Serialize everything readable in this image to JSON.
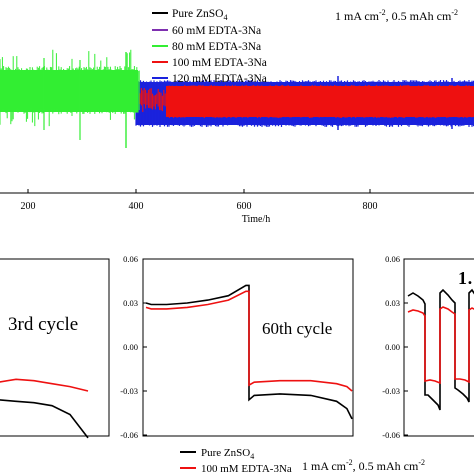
{
  "chart_data": [
    {
      "type": "line",
      "panel": "top",
      "xlabel": "Time/h",
      "ylabel": "",
      "xlim": [
        130,
        1000
      ],
      "xticks": [
        200,
        400,
        600,
        800
      ],
      "annotation": "1 mA cm⁻², 0.5 mAh cm⁻²",
      "legend": {
        "placement": "top-center",
        "entries": [
          "Pure ZnSO₄",
          "60 mM EDTA-3Na",
          "80 mM EDTA-3Na",
          "100 mM EDTA-3Na",
          "120 mM EDTA-3Na"
        ]
      },
      "series": [
        {
          "name": "Pure ZnSO₄",
          "color": "#000000",
          "x": [],
          "y": []
        },
        {
          "name": "60 mM EDTA-3Na",
          "color": "#7e2fb0",
          "x": [],
          "y": []
        },
        {
          "name": "80 mM EDTA-3Na",
          "color": "#33ee33",
          "x": [
            130,
            400
          ],
          "envelope_fill": "dense voltage oscillation, ends near 400 h"
        },
        {
          "name": "100 mM EDTA-3Na",
          "color": "#ee1111",
          "x": [
            400,
            1000
          ],
          "envelope_fill": "dense voltage oscillation"
        },
        {
          "name": "120 mM EDTA-3Na",
          "color": "#1a22dd",
          "x": [
            400,
            1000
          ],
          "envelope_fill": "dense voltage oscillation"
        }
      ],
      "grid": false
    },
    {
      "type": "line",
      "panel": "bottom-left",
      "title": "3rd cycle",
      "yticks": [],
      "series": [
        {
          "name": "Pure ZnSO₄",
          "color": "#000000",
          "y": [
            -0.036,
            -0.037,
            -0.038,
            -0.04,
            -0.046,
            -0.062
          ]
        },
        {
          "name": "100 mM EDTA-3Na",
          "color": "#ee1111",
          "y": [
            -0.024,
            -0.022,
            -0.023,
            -0.025,
            -0.027,
            -0.03
          ]
        }
      ]
    },
    {
      "type": "line",
      "panel": "bottom-middle",
      "title": "60th cycle",
      "ylim": [
        -0.06,
        0.06
      ],
      "yticks": [
        "0.06",
        "0.03",
        "0.00",
        "-0.03",
        "-0.06"
      ],
      "annotation": "1 mA cm⁻², 0.5 mAh cm⁻²",
      "legend": {
        "placement": "bottom-left",
        "entries": [
          "Pure ZnSO₄",
          "100 mM EDTA-3Na"
        ]
      },
      "series": [
        {
          "name": "Pure ZnSO₄",
          "color": "#000000",
          "x": [
            0,
            0.05,
            0.2,
            0.4,
            0.6,
            0.8,
            0.97,
            1.0,
            1.0,
            1.05,
            1.3,
            1.6,
            1.85,
            1.95,
            2.0
          ],
          "y": [
            0.03,
            0.029,
            0.029,
            0.03,
            0.032,
            0.035,
            0.042,
            0.042,
            -0.036,
            -0.033,
            -0.032,
            -0.033,
            -0.037,
            -0.042,
            -0.049
          ]
        },
        {
          "name": "100 mM EDTA-3Na",
          "color": "#ee1111",
          "x": [
            0,
            0.05,
            0.2,
            0.4,
            0.6,
            0.8,
            0.97,
            1.0,
            1.0,
            1.05,
            1.3,
            1.6,
            1.85,
            1.95,
            2.0
          ],
          "y": [
            0.027,
            0.026,
            0.026,
            0.027,
            0.029,
            0.032,
            0.038,
            0.038,
            -0.026,
            -0.024,
            -0.023,
            -0.023,
            -0.025,
            -0.027,
            -0.03
          ]
        }
      ]
    },
    {
      "type": "line",
      "panel": "bottom-right",
      "title": "1…",
      "ylim": [
        -0.06,
        0.06
      ],
      "yticks": [
        "0.06",
        "0.03",
        "0.00",
        "-0.03",
        "-0.06"
      ],
      "series": [
        {
          "name": "Pure ZnSO₄",
          "color": "#000000"
        },
        {
          "name": "100 mM EDTA-3Na",
          "color": "#ee1111"
        }
      ]
    }
  ],
  "labels": {
    "top_xlabel": "Time/h",
    "top_ticks": [
      "200",
      "400",
      "600",
      "800"
    ],
    "top_annotation_html_parts": [
      "1 mA cm",
      "-2",
      ", 0.5 mAh cm",
      "-2"
    ],
    "legend_top": [
      {
        "pre": "Pure ZnSO",
        "sub": "4"
      },
      {
        "pre": "60 mM EDTA-3Na",
        "sub": ""
      },
      {
        "pre": "80 mM EDTA-3Na",
        "sub": ""
      },
      {
        "pre": "100 mM EDTA-3Na",
        "sub": ""
      },
      {
        "pre": "120 mM EDTA-3Na",
        "sub": ""
      }
    ],
    "panel_a_title": "3rd cycle",
    "panel_b_title": "60th cycle",
    "panel_c_title": "1…",
    "panel_b_yticks": [
      "0.06",
      "0.03",
      "0.00",
      "-0.03",
      "-0.06"
    ],
    "panel_c_yticks": [
      "0.06",
      "0.03",
      "0.00",
      "-0.03",
      "-0.06"
    ],
    "bottom_legend": [
      {
        "pre": "Pure ZnSO",
        "sub": "4"
      },
      {
        "pre": "100 mM EDTA-3Na",
        "sub": ""
      }
    ],
    "bottom_annotation_parts": [
      "1 mA cm",
      "-2",
      ", 0.5 mAh cm",
      "-2"
    ]
  },
  "colors": {
    "green": "#33ee33",
    "red": "#ee1111",
    "blue": "#1a22dd",
    "purple": "#7e2fb0",
    "black": "#000000"
  }
}
